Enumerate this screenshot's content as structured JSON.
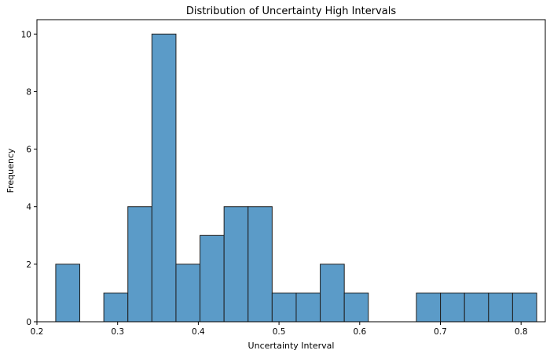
{
  "chart_data": {
    "type": "bar",
    "title": "Distribution of Uncertainty High Intervals",
    "xlabel": "Uncertainty Interval",
    "ylabel": "Frequency",
    "xlim": [
      0.2,
      0.83
    ],
    "ylim": [
      0,
      10.5
    ],
    "x_ticks": [
      {
        "value": 0.2,
        "label": "0.2"
      },
      {
        "value": 0.3,
        "label": "0.3"
      },
      {
        "value": 0.4,
        "label": "0.4"
      },
      {
        "value": 0.5,
        "label": "0.5"
      },
      {
        "value": 0.6,
        "label": "0.6"
      },
      {
        "value": 0.7,
        "label": "0.7"
      },
      {
        "value": 0.8,
        "label": "0.8"
      }
    ],
    "y_ticks": [
      {
        "value": 0,
        "label": "0"
      },
      {
        "value": 2,
        "label": "2"
      },
      {
        "value": 4,
        "label": "4"
      },
      {
        "value": 6,
        "label": "6"
      },
      {
        "value": 8,
        "label": "8"
      },
      {
        "value": 10,
        "label": "10"
      }
    ],
    "bins": [
      {
        "start": 0.2233,
        "end": 0.2531,
        "count": 2
      },
      {
        "start": 0.2531,
        "end": 0.2829,
        "count": 0
      },
      {
        "start": 0.2829,
        "end": 0.3127,
        "count": 1
      },
      {
        "start": 0.3127,
        "end": 0.3425,
        "count": 4
      },
      {
        "start": 0.3425,
        "end": 0.3723,
        "count": 10
      },
      {
        "start": 0.3723,
        "end": 0.4021,
        "count": 2
      },
      {
        "start": 0.4021,
        "end": 0.4319,
        "count": 3
      },
      {
        "start": 0.4319,
        "end": 0.4617,
        "count": 4
      },
      {
        "start": 0.4617,
        "end": 0.4915,
        "count": 4
      },
      {
        "start": 0.4915,
        "end": 0.5213,
        "count": 1
      },
      {
        "start": 0.5213,
        "end": 0.5511,
        "count": 1
      },
      {
        "start": 0.5511,
        "end": 0.5809,
        "count": 2
      },
      {
        "start": 0.5809,
        "end": 0.6107,
        "count": 1
      },
      {
        "start": 0.6107,
        "end": 0.6405,
        "count": 0
      },
      {
        "start": 0.6405,
        "end": 0.6703,
        "count": 0
      },
      {
        "start": 0.6703,
        "end": 0.7001,
        "count": 1
      },
      {
        "start": 0.7001,
        "end": 0.7299,
        "count": 1
      },
      {
        "start": 0.7299,
        "end": 0.7597,
        "count": 1
      },
      {
        "start": 0.7597,
        "end": 0.7895,
        "count": 1
      },
      {
        "start": 0.7895,
        "end": 0.8193,
        "count": 1
      }
    ],
    "grid": false,
    "legend": "none",
    "colors": {
      "bar_fill": "#5b9bc8",
      "bar_edge": "#1f1f1f",
      "axis": "#000000"
    }
  }
}
